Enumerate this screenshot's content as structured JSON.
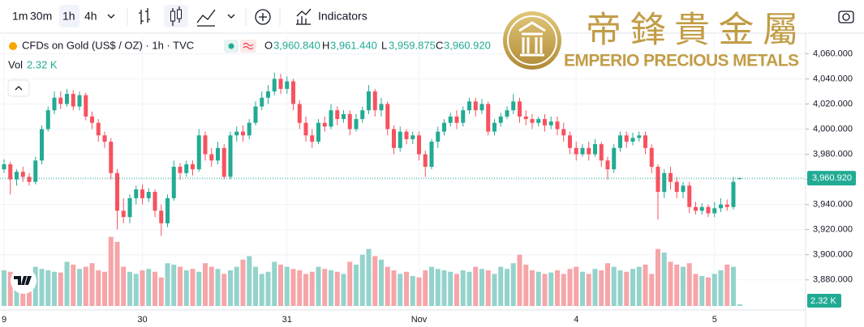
{
  "toolbar": {
    "intervals": [
      "1m",
      "30m",
      "1h",
      "4h"
    ],
    "indicators": "Indicators"
  },
  "logo": {
    "chinese": "帝鋒貴金屬",
    "english": "EMPERIO PRECIOUS METALS"
  },
  "chart_data": {
    "type": "candlestick",
    "title": "CFDs on Gold (US$ / OZ) · 1h · TVC",
    "ohlc_letters": [
      "O",
      "H",
      "L",
      "C"
    ],
    "volume_name": "Vol",
    "up_color": "#22ab94",
    "down_color": "#f7525f",
    "volume_up_color": "#93d3cb",
    "volume_down_color": "#f6a5a8",
    "grid": true,
    "ylim": [
      3856,
      4077
    ],
    "yticks": [
      {
        "value": 4060,
        "label": "4,060.000"
      },
      {
        "value": 4040,
        "label": "4,040.000"
      },
      {
        "value": 4020,
        "label": "4,020.000"
      },
      {
        "value": 4000,
        "label": "4,000.000"
      },
      {
        "value": 3980,
        "label": "3,980.000"
      },
      {
        "value": 3960,
        "label": "3,960.000"
      },
      {
        "value": 3940,
        "label": "3,940.000"
      },
      {
        "value": 3920,
        "label": "3,920.000"
      },
      {
        "value": 3900,
        "label": "3,900.000"
      },
      {
        "value": 3880,
        "label": "3,880.000"
      }
    ],
    "y2lim": [
      0,
      100
    ],
    "categories": [
      "9",
      null,
      null,
      null,
      null,
      null,
      null,
      null,
      null,
      null,
      null,
      null,
      null,
      null,
      null,
      null,
      null,
      null,
      null,
      null,
      null,
      null,
      "30",
      null,
      null,
      null,
      null,
      null,
      null,
      null,
      null,
      null,
      null,
      null,
      null,
      null,
      null,
      null,
      null,
      null,
      null,
      null,
      null,
      null,
      null,
      "31",
      null,
      null,
      null,
      null,
      null,
      null,
      null,
      null,
      null,
      null,
      null,
      null,
      null,
      null,
      null,
      null,
      null,
      null,
      null,
      null,
      "Nov",
      null,
      null,
      null,
      null,
      null,
      null,
      null,
      null,
      null,
      null,
      null,
      null,
      null,
      null,
      null,
      null,
      null,
      null,
      null,
      null,
      null,
      null,
      null,
      null,
      "4",
      null,
      null,
      null,
      null,
      null,
      null,
      null,
      null,
      null,
      null,
      null,
      null,
      null,
      null,
      null,
      null,
      null,
      null,
      null,
      null,
      null,
      "5",
      null,
      null,
      null,
      null
    ],
    "open": [
      3968,
      3972,
      3960,
      3966,
      3962,
      3958,
      3975,
      4000,
      4015,
      4025,
      4020,
      4028,
      4018,
      4027,
      4010,
      4005,
      3995,
      3990,
      3965,
      3935,
      3930,
      3945,
      3952,
      3945,
      3950,
      3935,
      3925,
      3945,
      3970,
      3965,
      3972,
      3968,
      3995,
      3980,
      3975,
      3985,
      3962,
      3995,
      3998,
      3995,
      4005,
      4018,
      4025,
      4030,
      4040,
      4032,
      4038,
      4020,
      4005,
      3995,
      3990,
      4005,
      4002,
      4015,
      4008,
      4012,
      4000,
      4008,
      4015,
      4030,
      4015,
      4020,
      4000,
      3985,
      3998,
      3992,
      3995,
      3980,
      3970,
      3990,
      3998,
      4005,
      4010,
      4005,
      4015,
      4022,
      4015,
      4020,
      3998,
      4005,
      4010,
      4015,
      4022,
      4010,
      4008,
      4005,
      4008,
      4003,
      4006,
      4000,
      3995,
      3985,
      3980,
      3985,
      3980,
      3988,
      3975,
      3968,
      3985,
      3995,
      3990,
      3993,
      3995,
      3985,
      3970,
      3950,
      3965,
      3958,
      3950,
      3955,
      3938,
      3935,
      3938,
      3933,
      3937,
      3940,
      3938,
      3960.84
    ],
    "high": [
      3976,
      3974,
      3968,
      3970,
      3965,
      3978,
      4003,
      4018,
      4030,
      4030,
      4032,
      4031,
      4030,
      4029,
      4014,
      4008,
      3998,
      3993,
      3968,
      3945,
      3948,
      3955,
      3956,
      3953,
      3952,
      3940,
      3948,
      3975,
      3973,
      3975,
      3975,
      4000,
      3998,
      3985,
      3990,
      3988,
      3998,
      4002,
      4003,
      4008,
      4022,
      4030,
      4035,
      4045,
      4044,
      4042,
      4040,
      4023,
      4010,
      4000,
      4008,
      4010,
      4020,
      4018,
      4015,
      4015,
      4012,
      4018,
      4035,
      4032,
      4025,
      4022,
      4003,
      4002,
      4000,
      3998,
      3998,
      3983,
      3992,
      4002,
      4008,
      4013,
      4015,
      4018,
      4025,
      4025,
      4024,
      4022,
      4008,
      4013,
      4018,
      4028,
      4025,
      4015,
      4012,
      4010,
      4012,
      4010,
      4010,
      4005,
      3998,
      3990,
      3988,
      3990,
      3992,
      3990,
      3978,
      3988,
      3998,
      3998,
      3997,
      3998,
      3998,
      3988,
      3972,
      3968,
      3970,
      3962,
      3958,
      3958,
      3942,
      3941,
      3940,
      3942,
      3945,
      3944,
      3962,
      3961.44
    ],
    "low": [
      3965,
      3948,
      3955,
      3958,
      3955,
      3956,
      3972,
      3998,
      4012,
      4016,
      4018,
      4015,
      4015,
      4007,
      4000,
      3990,
      3985,
      3960,
      3920,
      3925,
      3925,
      3940,
      3940,
      3942,
      3930,
      3915,
      3922,
      3943,
      3960,
      3962,
      3963,
      3966,
      3975,
      3970,
      3972,
      3960,
      3960,
      3990,
      3990,
      3992,
      4003,
      4015,
      4020,
      4027,
      4028,
      4028,
      4015,
      4000,
      3990,
      3985,
      3988,
      3998,
      4000,
      4003,
      4005,
      3995,
      3998,
      4005,
      4012,
      4010,
      4010,
      3995,
      3980,
      3982,
      3988,
      3988,
      3975,
      3962,
      3968,
      3985,
      3995,
      4002,
      4000,
      4002,
      4012,
      4010,
      4012,
      3995,
      3995,
      4002,
      4008,
      4012,
      4005,
      4003,
      4000,
      4002,
      3998,
      4000,
      3995,
      3990,
      3980,
      3975,
      3978,
      3975,
      3978,
      3970,
      3960,
      3965,
      3982,
      3985,
      3987,
      3990,
      3980,
      3965,
      3928,
      3945,
      3952,
      3945,
      3945,
      3933,
      3932,
      3932,
      3930,
      3930,
      3934,
      3935,
      3936,
      3959.875
    ],
    "close": [
      3972,
      3960,
      3966,
      3962,
      3958,
      3975,
      4000,
      4015,
      4025,
      4020,
      4028,
      4018,
      4027,
      4010,
      4005,
      3995,
      3990,
      3965,
      3935,
      3930,
      3945,
      3952,
      3945,
      3950,
      3935,
      3925,
      3945,
      3970,
      3965,
      3972,
      3968,
      3995,
      3980,
      3975,
      3985,
      3962,
      3995,
      3998,
      3995,
      4005,
      4018,
      4025,
      4030,
      4040,
      4032,
      4038,
      4020,
      4005,
      3995,
      3990,
      4005,
      4002,
      4015,
      4008,
      4012,
      4000,
      4008,
      4015,
      4030,
      4015,
      4020,
      4000,
      3985,
      3998,
      3992,
      3995,
      3980,
      3970,
      3990,
      3998,
      4005,
      4010,
      4005,
      4015,
      4022,
      4015,
      4020,
      3998,
      4005,
      4010,
      4015,
      4022,
      4010,
      4008,
      4005,
      4008,
      4003,
      4006,
      4000,
      3995,
      3985,
      3980,
      3985,
      3980,
      3988,
      3975,
      3968,
      3985,
      3995,
      3990,
      3993,
      3995,
      3985,
      3970,
      3950,
      3965,
      3958,
      3950,
      3955,
      3938,
      3935,
      3938,
      3933,
      3937,
      3940,
      3938,
      3958,
      3960.92
    ],
    "volume": [
      50,
      48,
      45,
      42,
      40,
      55,
      52,
      50,
      48,
      47,
      62,
      58,
      52,
      55,
      60,
      50,
      48,
      97,
      90,
      55,
      48,
      45,
      50,
      52,
      48,
      40,
      60,
      58,
      55,
      50,
      52,
      48,
      60,
      55,
      52,
      45,
      50,
      55,
      65,
      70,
      55,
      45,
      48,
      62,
      58,
      55,
      52,
      50,
      45,
      48,
      55,
      52,
      50,
      48,
      45,
      62,
      58,
      72,
      80,
      70,
      65,
      55,
      50,
      45,
      48,
      42,
      40,
      50,
      55,
      52,
      50,
      48,
      45,
      50,
      48,
      55,
      52,
      50,
      45,
      55,
      52,
      60,
      72,
      58,
      50,
      48,
      45,
      47,
      50,
      45,
      52,
      55,
      48,
      45,
      52,
      50,
      60,
      55,
      50,
      48,
      52,
      55,
      58,
      45,
      80,
      75,
      62,
      58,
      55,
      60,
      45,
      42,
      40,
      45,
      50,
      58,
      55,
      2.32
    ],
    "value_labels": {
      "open": "3,960.840",
      "high": "3,961.440",
      "low": "3,959.875",
      "close": "3,960.920",
      "volume": "2.32 K"
    }
  }
}
